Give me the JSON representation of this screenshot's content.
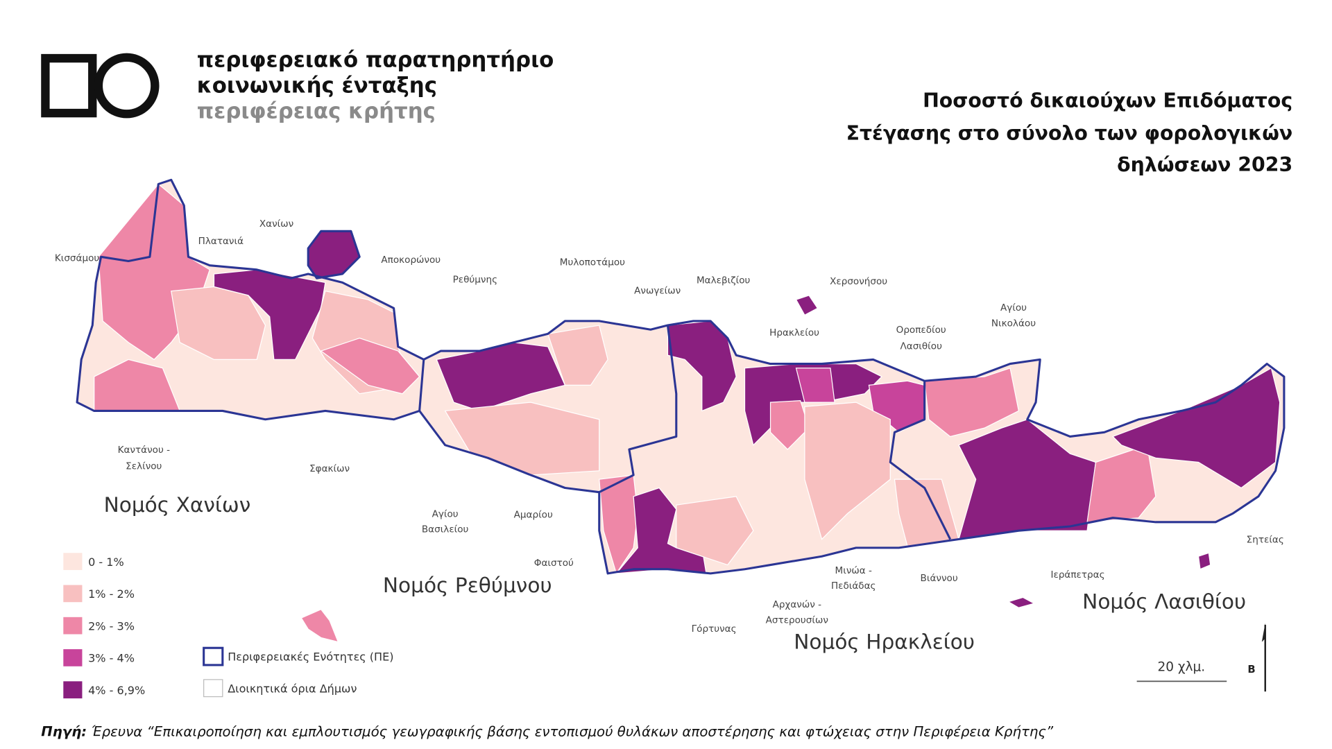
{
  "header": {
    "logo_lines": [
      "περιφερειακό παρατηρητήριο",
      "κοινωνικής ένταξης",
      "περιφέρειας κρήτης"
    ],
    "title_lines": [
      "Ποσοστό δικαιούχων Επιδόματος",
      "Στέγασης στο σύνολο των φορολογικών",
      "δηλώσεων 2023"
    ]
  },
  "map": {
    "municipalities": [
      [
        "Χανίων"
      ],
      [
        "Πλατανιά"
      ],
      [
        "Κισσάμου"
      ],
      [
        "Αποκορώνου"
      ],
      [
        "Ρεθύμνης"
      ],
      [
        "Μυλοποτάμου"
      ],
      [
        "Ανωγείων"
      ],
      [
        "Μαλεβιζίου"
      ],
      [
        "Χερσονήσου"
      ],
      [
        "Ηρακλείου"
      ],
      [
        "Οροπεδίου",
        "Λασιθίου"
      ],
      [
        "Αγίου",
        "Νικολάου"
      ],
      [
        "Καντάνου -",
        "Σελίνου"
      ],
      [
        "Σφακίων"
      ],
      [
        "Αγίου",
        "Βασιλείου"
      ],
      [
        "Αμαρίου"
      ],
      [
        "Φαιστού"
      ],
      [
        "Μινώα -",
        "Πεδιάδας"
      ],
      [
        "Βιάννου"
      ],
      [
        "Ιεράπετρας"
      ],
      [
        "Σητείας"
      ],
      [
        "Αρχανών -",
        "Αστερουσίων"
      ],
      [
        "Γόρτυνας"
      ]
    ],
    "prefectures": [
      "Νομός Χανίων",
      "Νομός Ρεθύμνου",
      "Νομός Ηρακλείου",
      "Νομός Λασιθίου"
    ],
    "legend": [
      {
        "label": "0 - 1%",
        "color": "#fde6df"
      },
      {
        "label": "1% - 2%",
        "color": "#f8c0c0"
      },
      {
        "label": "2% - 3%",
        "color": "#ee87a7"
      },
      {
        "label": "3% - 4%",
        "color": "#c8449b"
      },
      {
        "label": "4% - 6,9%",
        "color": "#8a1f7f"
      }
    ],
    "boundary_legend": [
      "Περιφερειακές Ενότητες (ΠΕ)",
      "Διοικητικά όρια Δήμων"
    ],
    "scale_label": "20 χλμ.",
    "north_label": "Β"
  },
  "source": {
    "label": "Πηγή:",
    "text": "Έρευνα “Επικαιροποίηση και εμπλουτισμός γεωγραφικής βάσης εντοπισμού θυλάκων αποστέρησης και φτώχειας στην Περιφέρεια Κρήτης”"
  }
}
